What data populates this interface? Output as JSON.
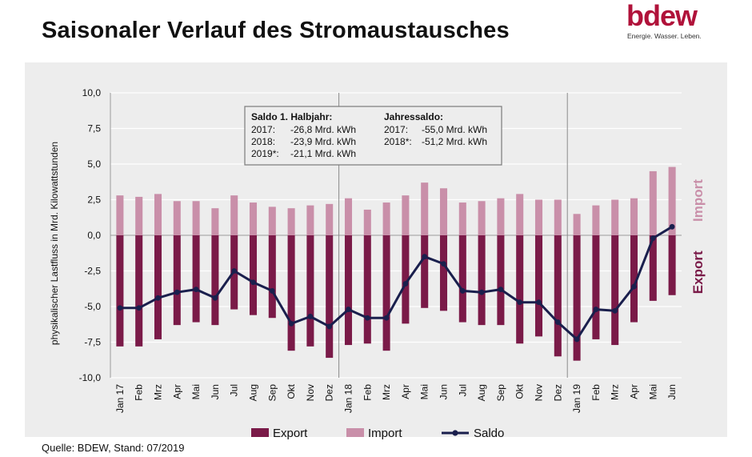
{
  "header": {
    "title": "Saisonaler Verlauf des Stromaustausches",
    "logo_word": "bdew",
    "logo_tagline": "Energie. Wasser. Leben."
  },
  "source": "Quelle: BDEW, Stand: 07/2019",
  "colors": {
    "export": "#7a1a48",
    "import": "#c98fa9",
    "saldo": "#1a1f4d",
    "panel": "#ededed",
    "logo": "#b0123a"
  },
  "infobox": {
    "left_title": "Saldo 1. Halbjahr:",
    "left_rows": [
      {
        "label": "2017:",
        "value": "-26,8 Mrd. kWh"
      },
      {
        "label": "2018:",
        "value": "-23,9 Mrd. kWh"
      },
      {
        "label": "2019*:",
        "value": "-21,1 Mrd. kWh"
      }
    ],
    "right_title": "Jahressaldo:",
    "right_rows": [
      {
        "label": "2017:",
        "value": "-55,0 Mrd. kWh"
      },
      {
        "label": "2018*:",
        "value": "-51,2 Mrd. kWh"
      }
    ]
  },
  "chart_data": {
    "type": "bar",
    "ylabel": "physikalischer Lastfluss in Mrd. Kilowattstunden",
    "right_label_import": "Import",
    "right_label_export": "Export",
    "ylim": [
      -10,
      10
    ],
    "yticks": [
      "-10,0",
      "-7,5",
      "-5,0",
      "-2,5",
      "0,0",
      "2,5",
      "5,0",
      "7,5",
      "10,0"
    ],
    "categories": [
      "Jan 17",
      "Feb",
      "Mrz",
      "Apr",
      "Mai",
      "Jun",
      "Jul",
      "Aug",
      "Sep",
      "Okt",
      "Nov",
      "Dez",
      "Jan 18",
      "Feb",
      "Mrz",
      "Apr",
      "Mai",
      "Jun",
      "Jul",
      "Aug",
      "Sep",
      "Okt",
      "Nov",
      "Dez",
      "Jan 19",
      "Feb",
      "Mrz",
      "Apr",
      "Mai",
      "Jun"
    ],
    "series": [
      {
        "name": "Export",
        "values": [
          -7.8,
          -7.8,
          -7.3,
          -6.3,
          -6.1,
          -6.3,
          -5.2,
          -5.6,
          -5.8,
          -8.1,
          -7.8,
          -8.6,
          -7.7,
          -7.6,
          -8.1,
          -6.2,
          -5.1,
          -5.3,
          -6.1,
          -6.3,
          -6.3,
          -7.6,
          -7.1,
          -8.5,
          -8.8,
          -7.3,
          -7.7,
          -6.1,
          -4.6,
          -4.2
        ]
      },
      {
        "name": "Import",
        "values": [
          2.8,
          2.7,
          2.9,
          2.4,
          2.4,
          1.9,
          2.8,
          2.3,
          2.0,
          1.9,
          2.1,
          2.2,
          2.6,
          1.8,
          2.3,
          2.8,
          3.7,
          3.3,
          2.3,
          2.4,
          2.6,
          2.9,
          2.5,
          2.5,
          1.5,
          2.1,
          2.5,
          2.6,
          4.5,
          4.8
        ]
      },
      {
        "name": "Saldo",
        "values": [
          -5.1,
          -5.1,
          -4.4,
          -4.0,
          -3.8,
          -4.4,
          -2.5,
          -3.3,
          -3.9,
          -6.2,
          -5.7,
          -6.4,
          -5.2,
          -5.8,
          -5.8,
          -3.4,
          -1.5,
          -2.0,
          -3.9,
          -4.0,
          -3.8,
          -4.7,
          -4.7,
          -6.1,
          -7.3,
          -5.2,
          -5.3,
          -3.6,
          -0.2,
          0.6
        ]
      }
    ],
    "year_separators_after": [
      11,
      23
    ],
    "legend": "bottom"
  }
}
